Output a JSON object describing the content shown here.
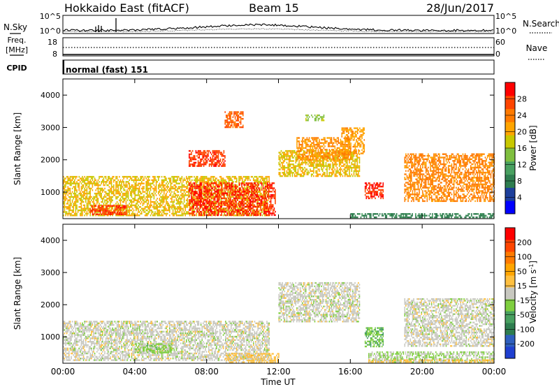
{
  "header": {
    "station": "Hokkaido East (fitACF)",
    "beam": "Beam 15",
    "date": "28/Jun/2017"
  },
  "noise_panel": {
    "left_label": "N.Sky",
    "right_label": "N.Search",
    "ticks": [
      "10^5",
      "10^0"
    ]
  },
  "freq_panel": {
    "left_label_line1": "Freq.",
    "left_label_line2": "[MHz]",
    "left_ticks": [
      "18",
      "8"
    ],
    "right_label": "Nave",
    "right_ticks": [
      "60",
      "0"
    ]
  },
  "cpid_panel": {
    "label": "CPID",
    "mode": "normal (fast) 151"
  },
  "colors": {
    "power_scale": [
      "#0000ff",
      "#1d3f9c",
      "#2e7d4f",
      "#48a060",
      "#7fbf3f",
      "#c8c800",
      "#ffa500",
      "#ff7a00",
      "#ff4500",
      "#ff0000"
    ],
    "velocity_scale": [
      "#1f3fd0",
      "#2e5fbe",
      "#2e7d4f",
      "#48a060",
      "#7fcf3f",
      "#c8c8c0",
      "#ffc040",
      "#ffa500",
      "#ff7a00",
      "#ff4500",
      "#ff0000"
    ]
  },
  "chart_data": [
    {
      "type": "heatmap",
      "title": "Power",
      "xlabel": "Time UT",
      "ylabel": "Slant Range [km]",
      "xlim": [
        0,
        24
      ],
      "ylim": [
        180,
        4500
      ],
      "x_ticks": [
        "00:00",
        "04:00",
        "08:00",
        "12:00",
        "16:00",
        "20:00",
        "00:00"
      ],
      "y_ticks": [
        "1000",
        "2000",
        "3000",
        "4000"
      ],
      "colorbar_label": "Power [dB]",
      "colorbar_ticks": [
        "28",
        "24",
        "20",
        "16",
        "12",
        "8",
        "4"
      ],
      "colorbar_range": [
        0,
        30
      ],
      "regions": [
        {
          "t0": 0.0,
          "t1": 11.5,
          "r0": 300,
          "r1": 1500,
          "value": 18
        },
        {
          "t0": 7.0,
          "t1": 11.8,
          "r0": 300,
          "r1": 1300,
          "value": 27
        },
        {
          "t0": 1.5,
          "t1": 3.5,
          "r0": 300,
          "r1": 600,
          "value": 26
        },
        {
          "t0": 7.0,
          "t1": 9.0,
          "r0": 1800,
          "r1": 2300,
          "value": 26
        },
        {
          "t0": 9.0,
          "t1": 10.0,
          "r0": 3000,
          "r1": 3500,
          "value": 24
        },
        {
          "t0": 12.0,
          "t1": 16.5,
          "r0": 1500,
          "r1": 2300,
          "value": 18
        },
        {
          "t0": 13.0,
          "t1": 16.0,
          "r0": 2000,
          "r1": 2700,
          "value": 21
        },
        {
          "t0": 13.5,
          "t1": 14.5,
          "r0": 3200,
          "r1": 3400,
          "value": 14
        },
        {
          "t0": 15.5,
          "t1": 16.8,
          "r0": 2200,
          "r1": 3000,
          "value": 20
        },
        {
          "t0": 16.8,
          "t1": 17.8,
          "r0": 800,
          "r1": 1300,
          "value": 27
        },
        {
          "t0": 19.0,
          "t1": 24.0,
          "r0": 700,
          "r1": 2200,
          "value": 22
        },
        {
          "t0": 16.0,
          "t1": 24.0,
          "r0": 200,
          "r1": 350,
          "value": 8
        }
      ]
    },
    {
      "type": "heatmap",
      "title": "Velocity",
      "xlabel": "Time UT",
      "ylabel": "Slant Range [km]",
      "xlim": [
        0,
        24
      ],
      "ylim": [
        180,
        4500
      ],
      "x_ticks": [
        "00:00",
        "04:00",
        "08:00",
        "12:00",
        "16:00",
        "20:00",
        "00:00"
      ],
      "y_ticks": [
        "1000",
        "2000",
        "3000",
        "4000"
      ],
      "colorbar_label": "Velocity [m s^-1]",
      "colorbar_ticks": [
        "200",
        "100",
        "50",
        "15",
        "-15",
        "-50",
        "-100",
        "-200"
      ],
      "colorbar_range": [
        -250,
        250
      ],
      "regions": [
        {
          "t0": 0.0,
          "t1": 11.5,
          "r0": 300,
          "r1": 1500,
          "value": 0
        },
        {
          "t0": 4.0,
          "t1": 6.0,
          "r0": 500,
          "r1": 800,
          "value": -40
        },
        {
          "t0": 9.0,
          "t1": 12.0,
          "r0": 200,
          "r1": 500,
          "value": 40
        },
        {
          "t0": 12.0,
          "t1": 16.5,
          "r0": 1500,
          "r1": 2700,
          "value": 0
        },
        {
          "t0": 16.8,
          "t1": 17.8,
          "r0": 700,
          "r1": 1300,
          "value": -60
        },
        {
          "t0": 19.0,
          "t1": 24.0,
          "r0": 700,
          "r1": 2200,
          "value": 0
        },
        {
          "t0": 17.0,
          "t1": 24.0,
          "r0": 200,
          "r1": 550,
          "value": -20
        },
        {
          "t0": 17.0,
          "t1": 24.0,
          "r0": 200,
          "r1": 300,
          "value": 40
        }
      ]
    }
  ]
}
